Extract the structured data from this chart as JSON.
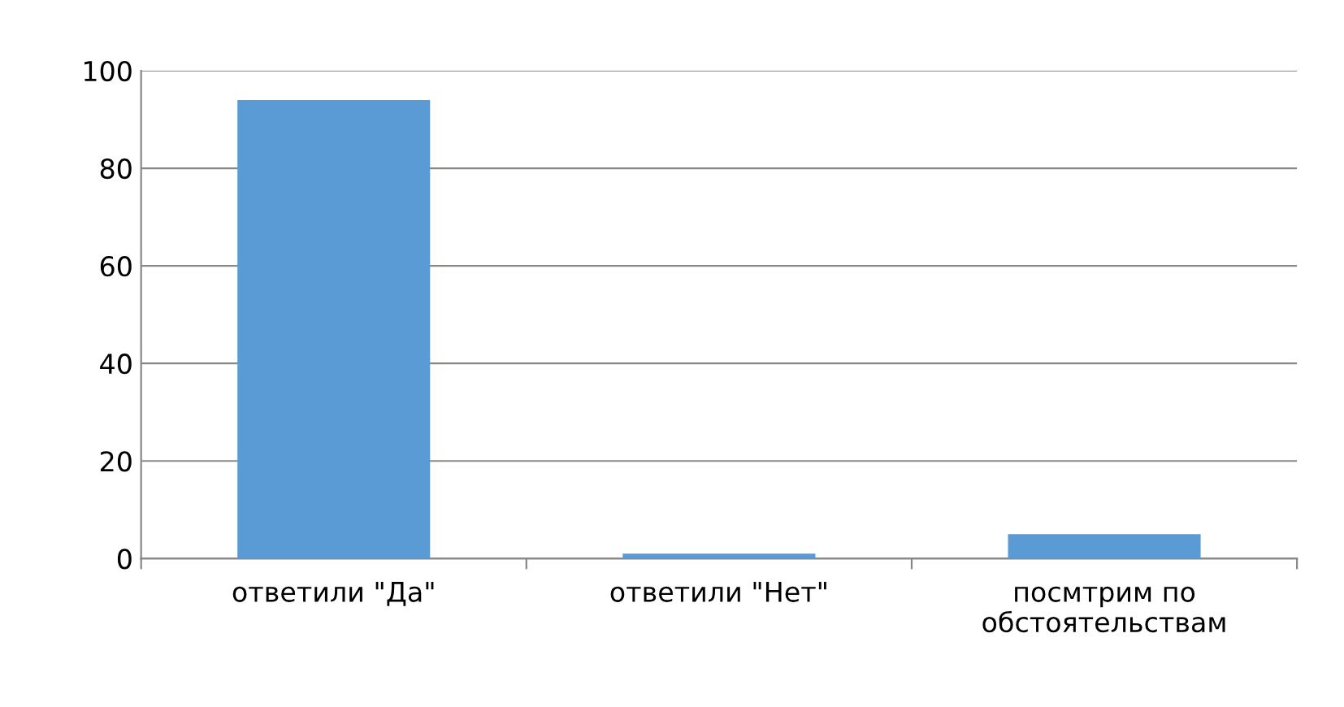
{
  "chart_data": {
    "type": "bar",
    "categories": [
      "ответили \"Да\"",
      "ответили \"Нет\"",
      "посмтрим по обстоятельствам"
    ],
    "values": [
      94,
      1,
      5
    ],
    "color": "#5b9bd5",
    "ylim": [
      0,
      100
    ],
    "yticks": [
      0,
      20,
      40,
      60,
      80,
      100
    ],
    "grid": "y"
  }
}
